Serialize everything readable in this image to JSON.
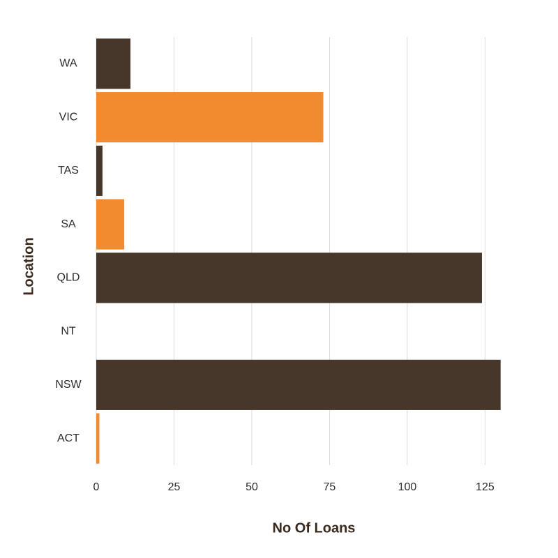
{
  "chart_data": {
    "type": "hbar",
    "x_label": "No Of Loans",
    "y_label": "Location",
    "categories": [
      "WA",
      "VIC",
      "TAS",
      "SA",
      "QLD",
      "NT",
      "NSW",
      "ACT"
    ],
    "values": [
      11,
      73,
      2,
      9,
      124,
      0,
      130,
      1
    ],
    "colors": [
      "#46372a",
      "#f28a30",
      "#46372a",
      "#f28a30",
      "#46372a",
      "#f28a30",
      "#46372a",
      "#f28a30"
    ],
    "xlim": [
      0,
      135
    ],
    "xticks": [
      0,
      25,
      50,
      75,
      100,
      125
    ],
    "grid": true
  }
}
